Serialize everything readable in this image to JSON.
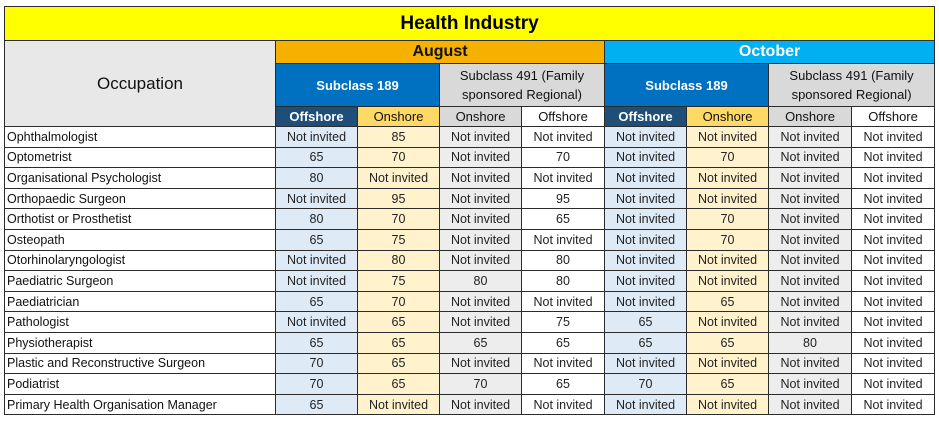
{
  "title": "Health Industry",
  "occupation_header": "Occupation",
  "months": [
    "August",
    "October"
  ],
  "subclass_189": "Subclass 189",
  "subclass_491_line1": "Subclass 491 (Family",
  "subclass_491_line2": "sponsored Regional)",
  "col_labels": [
    "Offshore",
    "Onshore",
    "Onshore",
    "Offshore",
    "Offshore",
    "Onshore",
    "Onshore",
    "Offshore"
  ],
  "rows": [
    {
      "occupation": "Ophthalmologist",
      "values": [
        "Not invited",
        "85",
        "Not invited",
        "Not invited",
        "Not invited",
        "Not invited",
        "Not invited",
        "Not invited"
      ]
    },
    {
      "occupation": "Optometrist",
      "values": [
        "65",
        "70",
        "Not invited",
        "70",
        "Not invited",
        "70",
        "Not invited",
        "Not invited"
      ]
    },
    {
      "occupation": "Organisational Psychologist",
      "values": [
        "80",
        "Not invited",
        "Not invited",
        "Not invited",
        "Not invited",
        "Not invited",
        "Not invited",
        "Not invited"
      ]
    },
    {
      "occupation": "Orthopaedic Surgeon",
      "values": [
        "Not invited",
        "95",
        "Not invited",
        "95",
        "Not invited",
        "Not invited",
        "Not invited",
        "Not invited"
      ]
    },
    {
      "occupation": "Orthotist or Prosthetist",
      "values": [
        "80",
        "70",
        "Not invited",
        "65",
        "Not invited",
        "70",
        "Not invited",
        "Not invited"
      ]
    },
    {
      "occupation": "Osteopath",
      "values": [
        "65",
        "75",
        "Not invited",
        "Not invited",
        "Not invited",
        "70",
        "Not invited",
        "Not invited"
      ]
    },
    {
      "occupation": "Otorhinolaryngologist",
      "values": [
        "Not invited",
        "80",
        "Not invited",
        "80",
        "Not invited",
        "Not invited",
        "Not invited",
        "Not invited"
      ]
    },
    {
      "occupation": "Paediatric Surgeon",
      "values": [
        "Not invited",
        "75",
        "80",
        "80",
        "Not invited",
        "Not invited",
        "Not invited",
        "Not invited"
      ]
    },
    {
      "occupation": "Paediatrician",
      "values": [
        "65",
        "70",
        "Not invited",
        "Not invited",
        "Not invited",
        "65",
        "Not invited",
        "Not invited"
      ]
    },
    {
      "occupation": "Pathologist",
      "values": [
        "Not invited",
        "65",
        "Not invited",
        "75",
        "65",
        "Not invited",
        "Not invited",
        "Not invited"
      ]
    },
    {
      "occupation": "Physiotherapist",
      "values": [
        "65",
        "65",
        "65",
        "65",
        "65",
        "65",
        "80",
        "Not invited"
      ]
    },
    {
      "occupation": "Plastic and Reconstructive Surgeon",
      "values": [
        "70",
        "65",
        "Not invited",
        "Not invited",
        "Not invited",
        "Not invited",
        "Not invited",
        "Not invited"
      ]
    },
    {
      "occupation": "Podiatrist",
      "values": [
        "70",
        "65",
        "70",
        "65",
        "70",
        "65",
        "Not invited",
        "Not invited"
      ]
    },
    {
      "occupation": "Primary Health Organisation Manager",
      "values": [
        "65",
        "Not invited",
        "Not invited",
        "Not invited",
        "Not invited",
        "Not invited",
        "Not invited",
        "Not invited"
      ]
    }
  ],
  "colors": {
    "title_bg": "#ffff00",
    "august_bg": "#f5b000",
    "october_bg": "#00b0f0",
    "subclass189_bg": "#0070c0",
    "offshore_header_bg": "#1f4e79",
    "onshore_header_bg": "#ffd966"
  }
}
